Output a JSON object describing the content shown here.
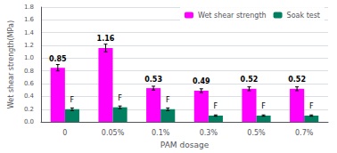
{
  "chart_data": {
    "type": "bar",
    "categories": [
      "0",
      "0.05%",
      "0.1%",
      "0.3%",
      "0.5%",
      "0.7%"
    ],
    "series": [
      {
        "name": "Wet shear strength",
        "color": "#FF00FF",
        "values": [
          0.85,
          1.16,
          0.53,
          0.49,
          0.52,
          0.52
        ],
        "errors": [
          0.05,
          0.06,
          0.03,
          0.03,
          0.03,
          0.03
        ],
        "data_labels": true
      },
      {
        "name": "Soak test",
        "color": "#008060",
        "values": [
          0.2,
          0.23,
          0.2,
          0.1,
          0.1,
          0.1
        ],
        "errors": [
          0.02,
          0.02,
          0.02,
          0.01,
          0.01,
          0.01
        ],
        "data_labels": true,
        "value_labels": [
          "F",
          "F",
          "F",
          "F",
          "F",
          "F"
        ]
      }
    ],
    "xlabel": "PAM dosage",
    "ylabel": "Wet shear strength(MPa)",
    "ylim": [
      0,
      1.8
    ],
    "yticks": [
      {
        "value": 0,
        "label": "0.0"
      },
      0.2,
      0.4,
      0.6,
      0.8,
      {
        "value": 1,
        "label": "1.0"
      },
      1.2,
      1.4,
      1.6,
      1.8
    ],
    "grid": true,
    "legend": "upper right"
  }
}
